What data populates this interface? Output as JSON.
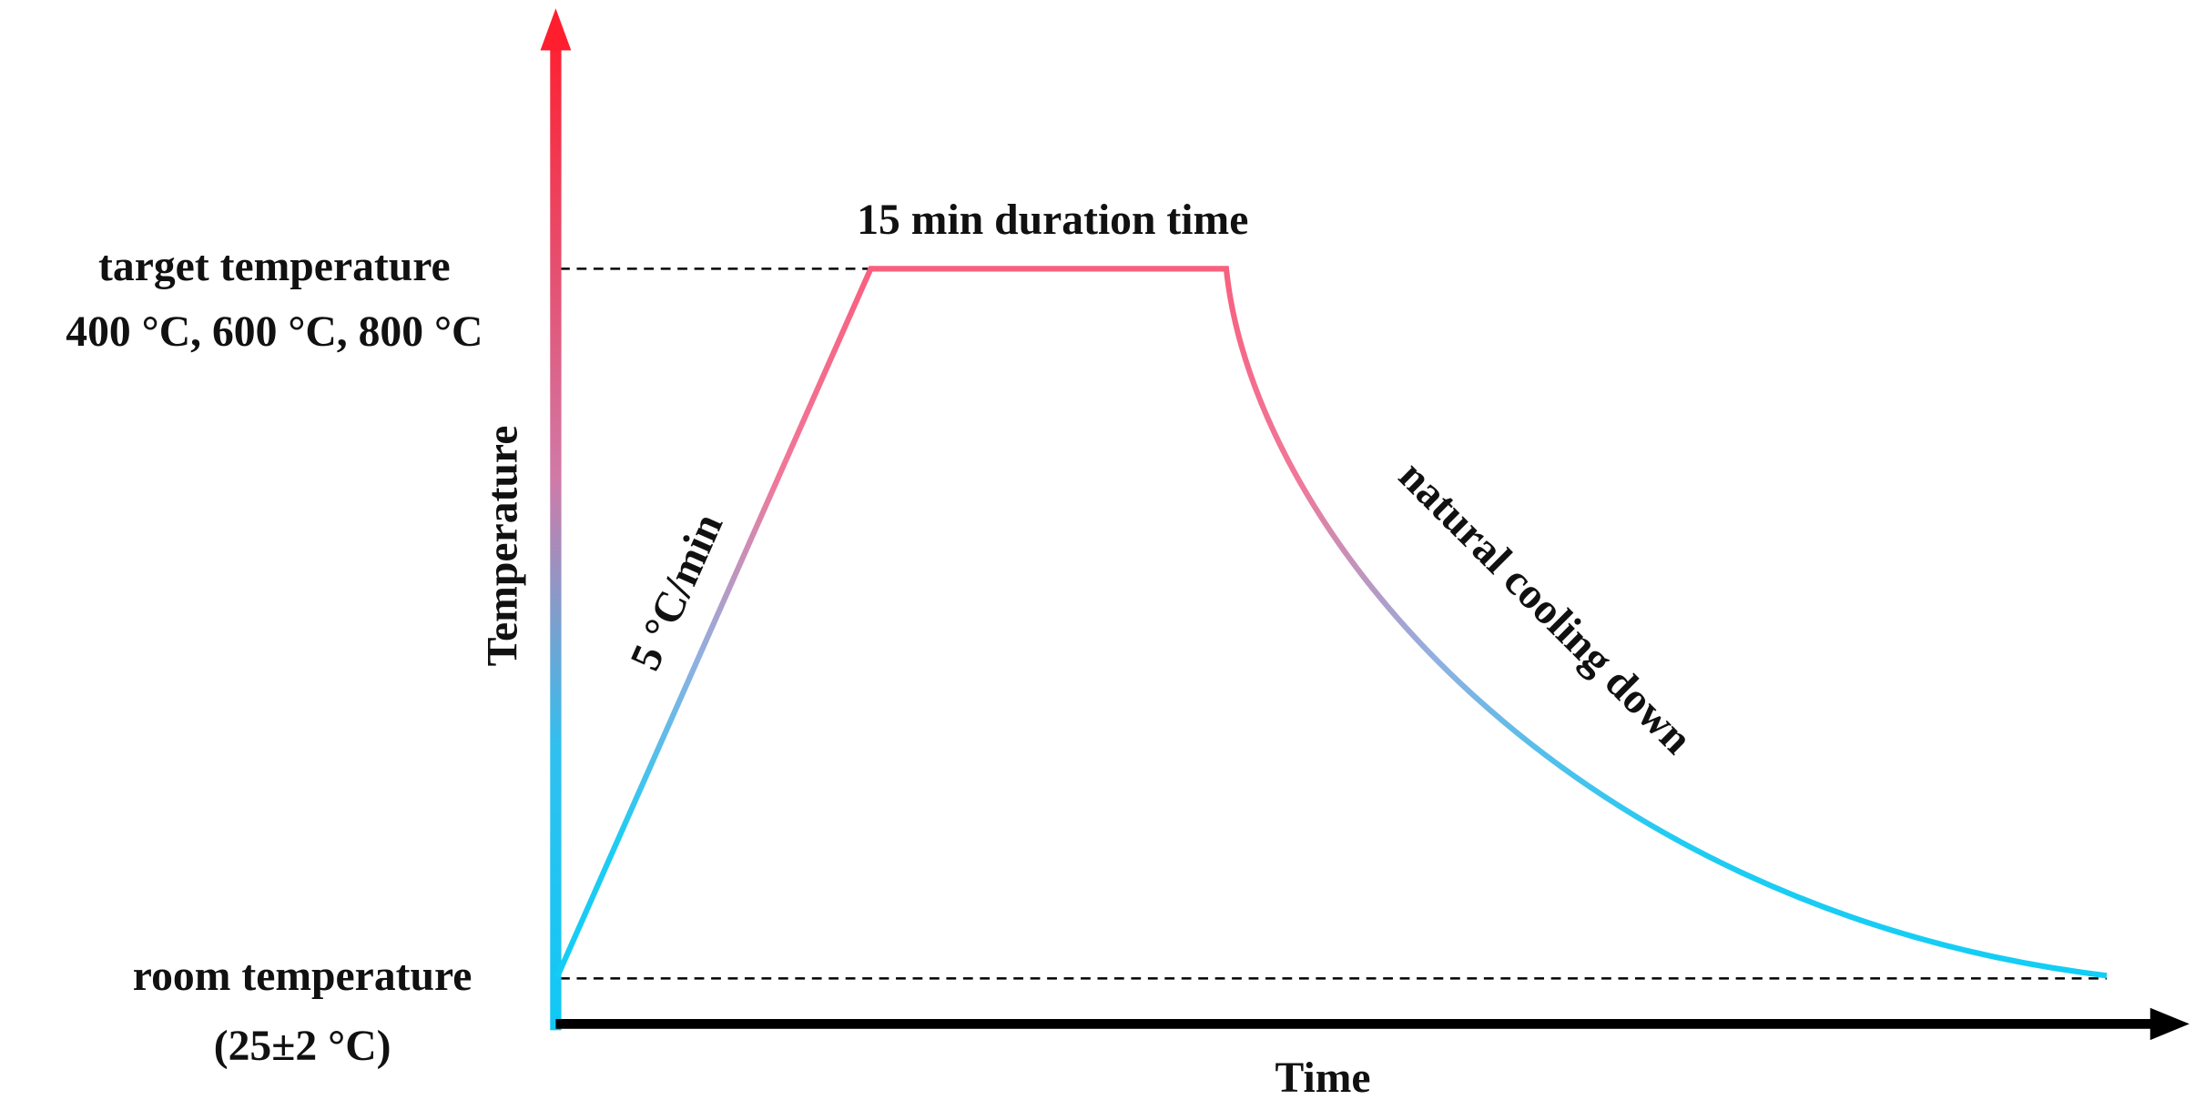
{
  "axes": {
    "y_label": "Temperature",
    "x_label": "Time"
  },
  "levels": {
    "target": [
      "target temperature",
      "400 °C, 600 °C, 800 °C"
    ],
    "room": [
      "room temperature",
      "(25±2 °C)"
    ]
  },
  "segments": {
    "heating": "5 °C/min",
    "holding": "15 min duration time",
    "cooling": "natural cooling down"
  }
}
